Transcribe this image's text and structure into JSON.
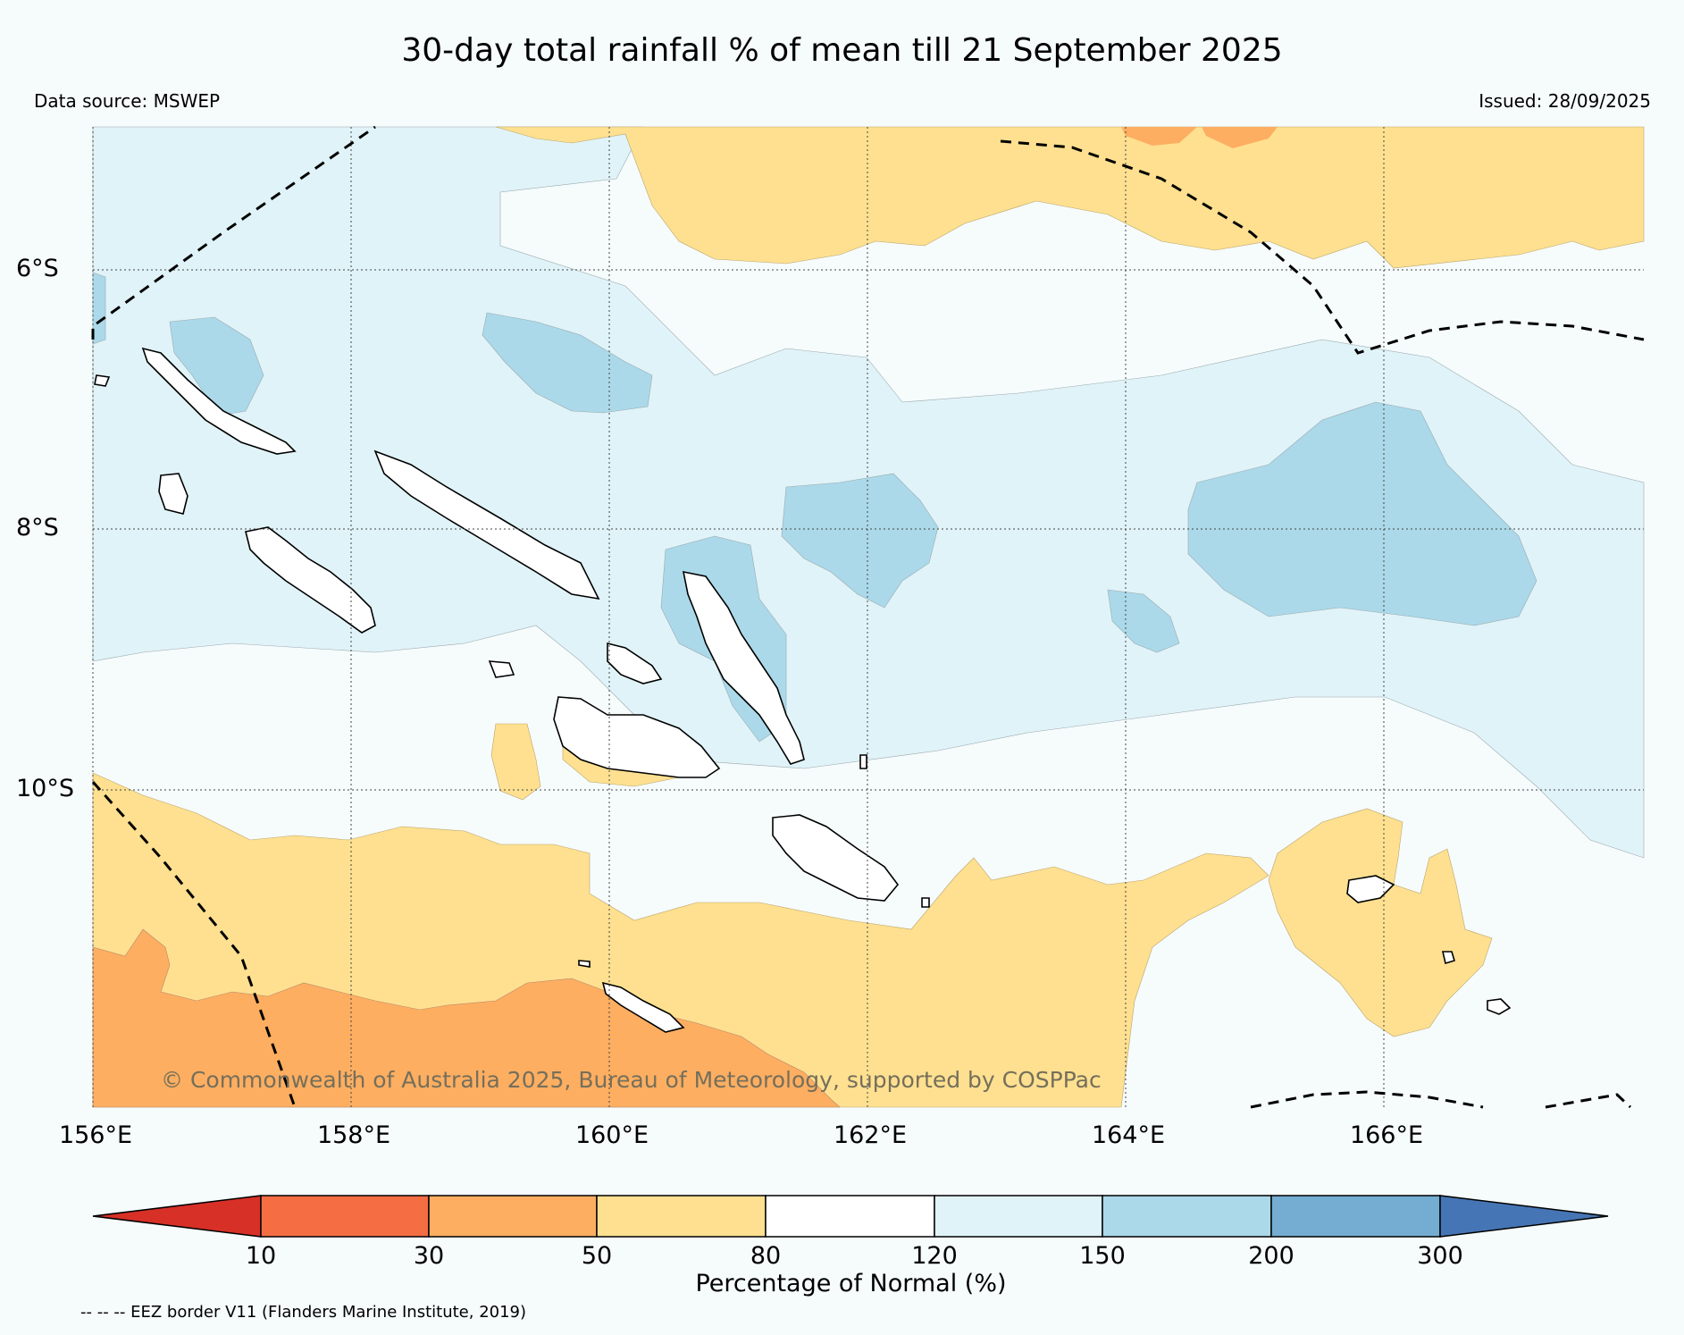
{
  "title": "30-day total rainfall % of mean till 21 September 2025",
  "data_source": "Data source: MSWEP",
  "issued": "Issued: 28/09/2025",
  "copyright": "© Commonwealth of Australia 2025, Bureau of Meteorology, supported by COSPPac",
  "lat_ticks": [
    "6°S",
    "8°S",
    "10°S"
  ],
  "lon_ticks": [
    "156°E",
    "158°E",
    "160°E",
    "162°E",
    "164°E",
    "166°E"
  ],
  "colorbar": {
    "title": "Percentage of Normal (%)",
    "labels": [
      "10",
      "30",
      "50",
      "80",
      "120",
      "150",
      "200",
      "300"
    ],
    "colors": [
      "#d73027",
      "#f46d43",
      "#fdae61",
      "#fee090",
      "#ffffff",
      "#e0f3f8",
      "#abd9e9",
      "#74add1",
      "#4575b4"
    ]
  },
  "legend_note": "-- -- -- EEZ border V11 (Flanders Marine Institute, 2019)"
}
